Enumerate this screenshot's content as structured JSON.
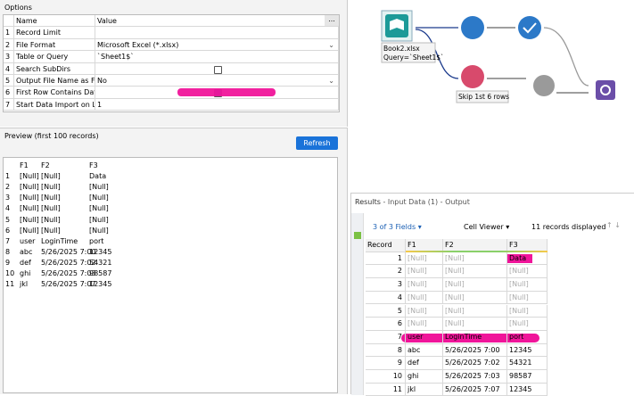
{
  "options": {
    "title": "Options",
    "columns": [
      "Name",
      "Value"
    ],
    "rows": [
      {
        "num": 1,
        "name": "Record Limit"
      },
      {
        "num": 2,
        "name": "File Format",
        "value": "Microsoft Excel (*.xlsx)"
      },
      {
        "num": 3,
        "name": "Table or Query",
        "value": "`Sheet1$`",
        "button": "..."
      },
      {
        "num": 4,
        "name": "Search SubDirs"
      },
      {
        "num": 5,
        "name": "Output File Name as Field",
        "value": "No"
      },
      {
        "num": 6,
        "name": "First Row Contains Data"
      },
      {
        "num": 7,
        "name": "Start Data Import on Line",
        "value": "1"
      }
    ]
  },
  "preview": {
    "title": "Preview (first 100 records)",
    "button": "Refresh",
    "columns": [
      "F1",
      "F2",
      "F3"
    ],
    "rows": [
      [
        1,
        "[Null]",
        "[Null]",
        "Data"
      ],
      [
        2,
        "[Null]",
        "[Null]",
        "[Null]"
      ],
      [
        3,
        "[Null]",
        "[Null]",
        "[Null]"
      ],
      [
        4,
        "[Null]",
        "[Null]",
        "[Null]"
      ],
      [
        5,
        "[Null]",
        "[Null]",
        "[Null]"
      ],
      [
        6,
        "[Null]",
        "[Null]",
        "[Null]"
      ],
      [
        7,
        "user",
        "LoginTime",
        "port"
      ],
      [
        8,
        "abc",
        "5/26/2025 7:00",
        "12345"
      ],
      [
        9,
        "def",
        "5/26/2025 7:02",
        "54321"
      ],
      [
        10,
        "ghi",
        "5/26/2025 7:03",
        "98587"
      ],
      [
        11,
        "jkl",
        "5/26/2025 7:07",
        "12345"
      ]
    ]
  },
  "workflow": {
    "input_label": [
      "Book2.xlsx",
      "Query=`Sheet1$`"
    ],
    "sample_label": "Skip 1st 6 rows"
  },
  "results": {
    "title": "Results",
    "subtitle": "- Input Data (1) - Output",
    "fields": "3 of 3 Fields",
    "viewer": "Cell Viewer",
    "count": "11 records displayed",
    "columns": [
      "Record",
      "F1",
      "F2",
      "F3"
    ],
    "rows": [
      [
        1,
        "[Null]",
        "[Null]",
        "Data"
      ],
      [
        2,
        "[Null]",
        "[Null]",
        "[Null]"
      ],
      [
        3,
        "[Null]",
        "[Null]",
        "[Null]"
      ],
      [
        4,
        "[Null]",
        "[Null]",
        "[Null]"
      ],
      [
        5,
        "[Null]",
        "[Null]",
        "[Null]"
      ],
      [
        6,
        "[Null]",
        "[Null]",
        "[Null]"
      ],
      [
        7,
        "user",
        "LoginTime",
        "port"
      ],
      [
        8,
        "abc",
        "5/26/2025 7:00",
        "12345"
      ],
      [
        9,
        "def",
        "5/26/2025 7:02",
        "54321"
      ],
      [
        10,
        "ghi",
        "5/26/2025 7:03",
        "98587"
      ],
      [
        11,
        "jkl",
        "5/26/2025 7:07",
        "12345"
      ]
    ]
  }
}
